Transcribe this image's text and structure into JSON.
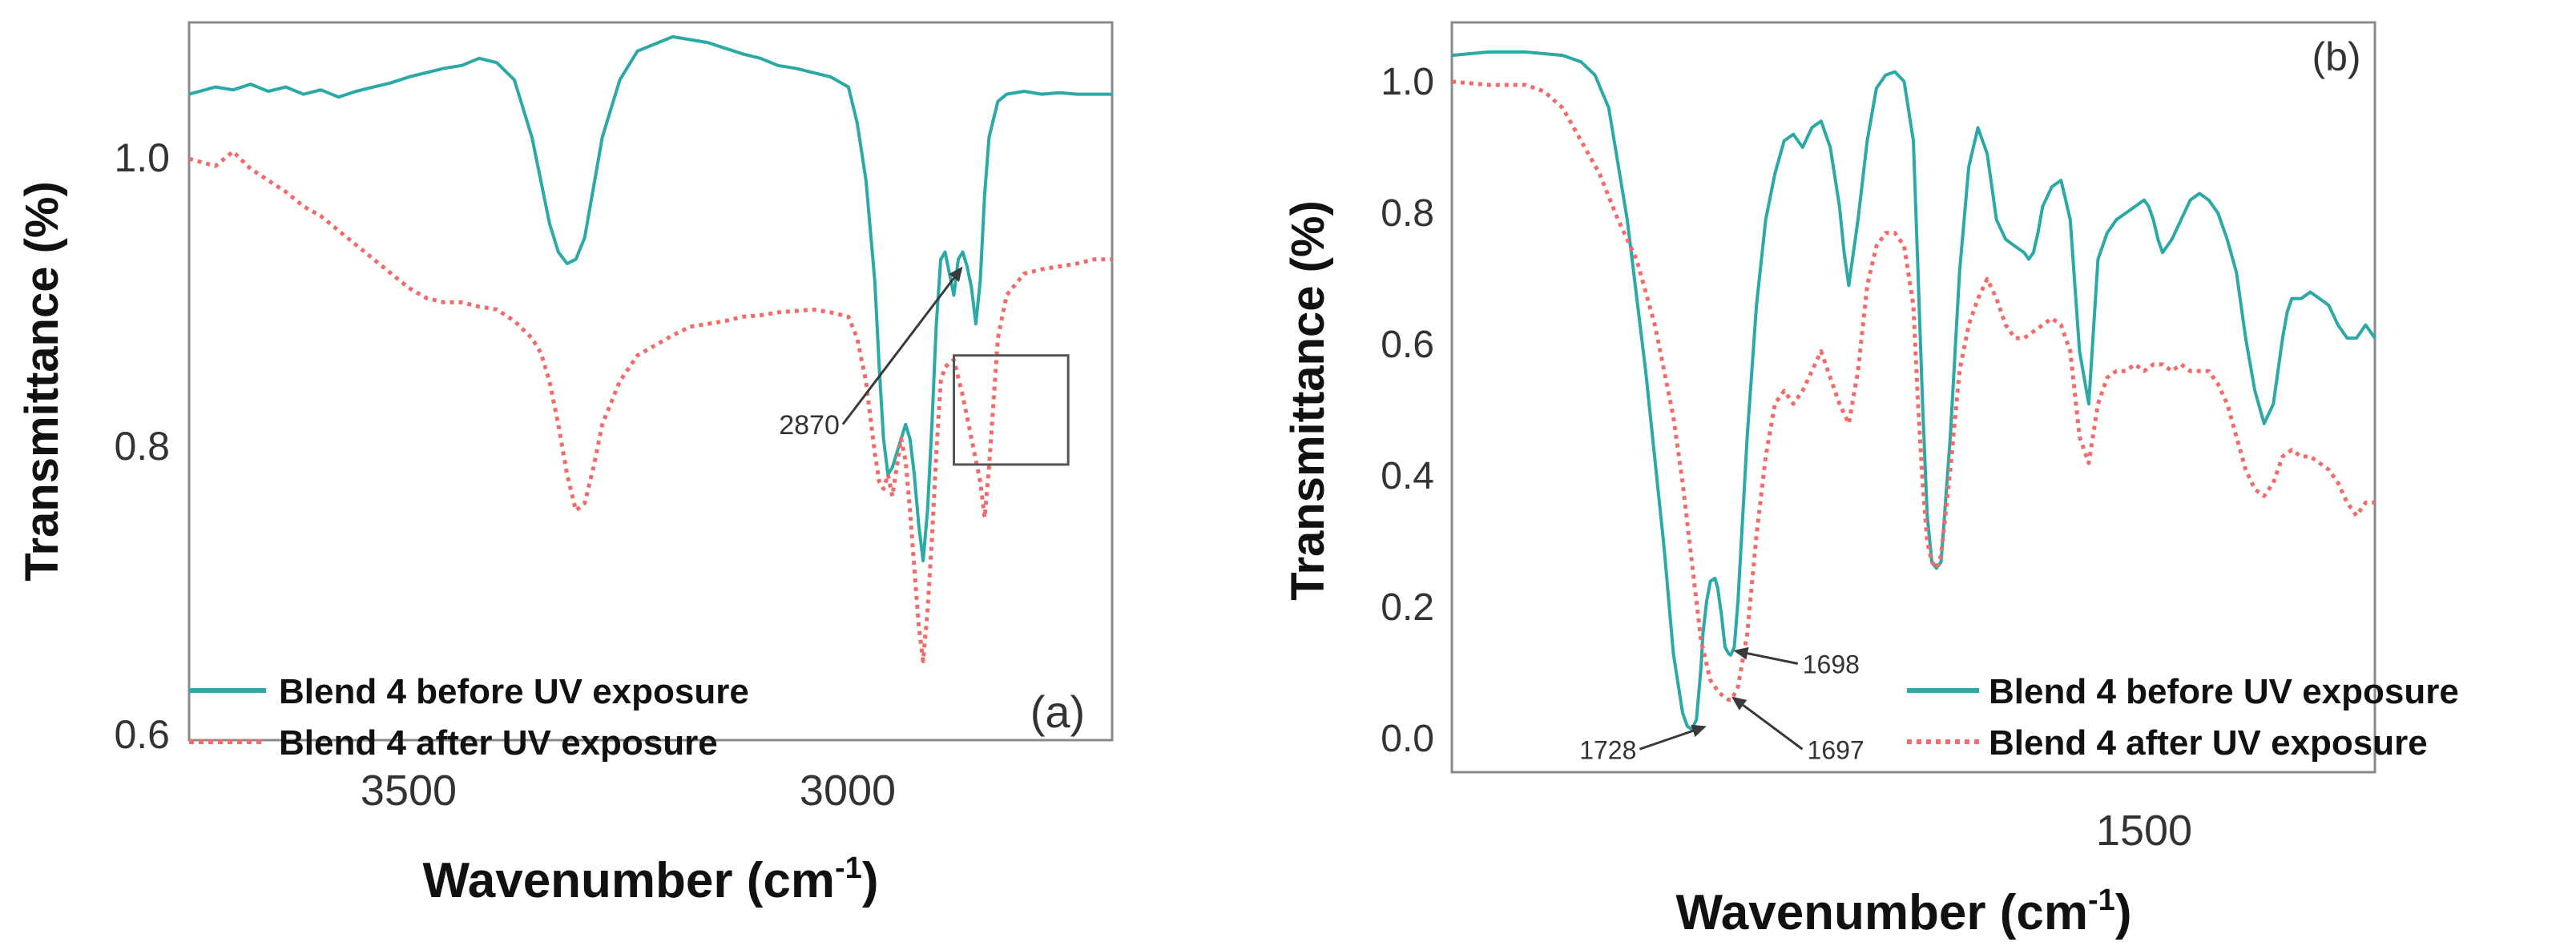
{
  "colors": {
    "before": "#2aa9a6",
    "after": "#f26b6b",
    "frame": "#8a8a8a",
    "arrow": "#3a3a3a"
  },
  "chart_data": [
    {
      "id": "a",
      "type": "line",
      "panel_label": "(a)",
      "xlabel": "Wavenumber (cm",
      "xlabel_sup": "-1",
      "xlabel_close": ")",
      "ylabel": "Transmittance (%)",
      "xlim": [
        3750,
        2700
      ],
      "ylim": [
        0.58,
        1.08
      ],
      "xticks": [
        3500,
        3000
      ],
      "xtick_labels": [
        "3500",
        "3000"
      ],
      "yticks": [
        1.0,
        0.8,
        0.6
      ],
      "ytick_labels": [
        "1.0",
        "0.8",
        "0.6"
      ],
      "legend": [
        "Blend 4 before UV exposure",
        "Blend 4 after UV exposure"
      ],
      "annotations": [
        {
          "text": "2870",
          "tip": [
            2870,
            0.91
          ],
          "label_at": [
            3010,
            0.8
          ]
        }
      ],
      "box": {
        "x": [
          2880,
          2750
        ],
        "y": [
          0.848,
          0.772
        ]
      },
      "series": [
        {
          "name": "Blend 4 before UV exposure",
          "style": "solid",
          "x": [
            3750,
            3720,
            3700,
            3680,
            3660,
            3640,
            3620,
            3600,
            3580,
            3560,
            3540,
            3520,
            3500,
            3480,
            3460,
            3440,
            3420,
            3400,
            3380,
            3360,
            3350,
            3340,
            3330,
            3320,
            3310,
            3300,
            3290,
            3280,
            3260,
            3240,
            3220,
            3200,
            3180,
            3160,
            3140,
            3120,
            3100,
            3080,
            3060,
            3040,
            3020,
            3000,
            2990,
            2980,
            2970,
            2965,
            2960,
            2955,
            2950,
            2945,
            2940,
            2935,
            2930,
            2925,
            2920,
            2915,
            2910,
            2905,
            2900,
            2895,
            2890,
            2885,
            2880,
            2875,
            2870,
            2865,
            2860,
            2855,
            2850,
            2845,
            2840,
            2830,
            2820,
            2800,
            2780,
            2760,
            2740,
            2720,
            2700
          ],
          "y": [
            1.03,
            1.035,
            1.033,
            1.037,
            1.032,
            1.035,
            1.03,
            1.033,
            1.028,
            1.032,
            1.035,
            1.038,
            1.042,
            1.045,
            1.048,
            1.05,
            1.055,
            1.052,
            1.04,
            1.0,
            0.97,
            0.94,
            0.92,
            0.912,
            0.915,
            0.93,
            0.965,
            1.0,
            1.04,
            1.06,
            1.065,
            1.07,
            1.068,
            1.066,
            1.062,
            1.058,
            1.055,
            1.05,
            1.048,
            1.045,
            1.042,
            1.035,
            1.01,
            0.97,
            0.9,
            0.84,
            0.79,
            0.765,
            0.77,
            0.78,
            0.79,
            0.8,
            0.79,
            0.765,
            0.73,
            0.705,
            0.74,
            0.8,
            0.87,
            0.915,
            0.92,
            0.905,
            0.89,
            0.915,
            0.92,
            0.91,
            0.895,
            0.87,
            0.9,
            0.96,
            1.0,
            1.025,
            1.03,
            1.032,
            1.03,
            1.031,
            1.03,
            1.03,
            1.03
          ]
        },
        {
          "name": "Blend 4 after UV exposure",
          "style": "dotted",
          "x": [
            3750,
            3720,
            3700,
            3680,
            3660,
            3640,
            3620,
            3600,
            3580,
            3560,
            3540,
            3520,
            3500,
            3480,
            3460,
            3440,
            3420,
            3400,
            3380,
            3360,
            3350,
            3340,
            3330,
            3320,
            3310,
            3300,
            3290,
            3280,
            3260,
            3240,
            3220,
            3200,
            3180,
            3160,
            3140,
            3120,
            3100,
            3080,
            3060,
            3040,
            3020,
            3000,
            2990,
            2980,
            2970,
            2965,
            2960,
            2955,
            2950,
            2945,
            2940,
            2935,
            2930,
            2925,
            2920,
            2915,
            2910,
            2905,
            2900,
            2895,
            2890,
            2880,
            2870,
            2860,
            2850,
            2845,
            2840,
            2830,
            2820,
            2800,
            2780,
            2760,
            2740,
            2720,
            2700
          ],
          "y": [
            0.985,
            0.98,
            0.99,
            0.978,
            0.97,
            0.962,
            0.952,
            0.945,
            0.935,
            0.925,
            0.915,
            0.905,
            0.895,
            0.888,
            0.885,
            0.885,
            0.882,
            0.88,
            0.872,
            0.86,
            0.85,
            0.83,
            0.8,
            0.765,
            0.74,
            0.745,
            0.77,
            0.8,
            0.83,
            0.848,
            0.855,
            0.862,
            0.868,
            0.87,
            0.872,
            0.875,
            0.876,
            0.878,
            0.879,
            0.88,
            0.878,
            0.875,
            0.86,
            0.83,
            0.78,
            0.76,
            0.755,
            0.765,
            0.75,
            0.77,
            0.79,
            0.775,
            0.74,
            0.7,
            0.66,
            0.635,
            0.67,
            0.72,
            0.78,
            0.83,
            0.84,
            0.845,
            0.82,
            0.79,
            0.76,
            0.735,
            0.77,
            0.86,
            0.89,
            0.905,
            0.908,
            0.91,
            0.912,
            0.915,
            0.915
          ]
        }
      ]
    },
    {
      "id": "b",
      "type": "line",
      "panel_label": "(b)",
      "xlabel": "Wavenumber (cm",
      "xlabel_sup": "-1",
      "xlabel_close": ")",
      "ylabel": "Transmittance (%)",
      "xlim": [
        2000,
        1000
      ],
      "ylim": [
        -0.06,
        1.08
      ],
      "xticks": [
        1500
      ],
      "xtick_labels": [
        "1500"
      ],
      "yticks": [
        1.0,
        0.8,
        0.6,
        0.4,
        0.2,
        0.0
      ],
      "ytick_labels": [
        "1.0",
        "0.8",
        "0.6",
        "0.4",
        "0.2",
        "0.0"
      ],
      "legend": [
        "Blend 4 before UV exposure",
        "Blend 4 after UV exposure"
      ],
      "annotations": [
        {
          "text": "1698",
          "tip": [
            1695,
            0.125
          ],
          "label_at": [
            1620,
            0.105
          ]
        },
        {
          "text": "1728",
          "tip": [
            1724,
            0.01
          ],
          "label_at": [
            1800,
            -0.025
          ]
        },
        {
          "text": "1697",
          "tip": [
            1697,
            0.055
          ],
          "label_at": [
            1615,
            -0.025
          ]
        }
      ],
      "series": [
        {
          "name": "Blend 4 before UV exposure",
          "style": "solid",
          "x": [
            2000,
            1960,
            1920,
            1880,
            1860,
            1845,
            1830,
            1810,
            1790,
            1770,
            1760,
            1750,
            1745,
            1740,
            1735,
            1730,
            1728,
            1724,
            1720,
            1715,
            1712,
            1708,
            1704,
            1700,
            1698,
            1694,
            1690,
            1680,
            1670,
            1660,
            1650,
            1640,
            1630,
            1620,
            1610,
            1600,
            1590,
            1580,
            1575,
            1570,
            1560,
            1550,
            1540,
            1530,
            1520,
            1510,
            1500,
            1495,
            1490,
            1485,
            1480,
            1475,
            1470,
            1460,
            1450,
            1440,
            1430,
            1420,
            1410,
            1400,
            1390,
            1380,
            1375,
            1370,
            1365,
            1360,
            1350,
            1340,
            1330,
            1320,
            1310,
            1300,
            1290,
            1280,
            1270,
            1260,
            1250,
            1245,
            1240,
            1235,
            1230,
            1220,
            1210,
            1200,
            1190,
            1180,
            1170,
            1160,
            1150,
            1140,
            1130,
            1120,
            1110,
            1100,
            1095,
            1090,
            1080,
            1070,
            1060,
            1050,
            1040,
            1030,
            1020,
            1010,
            1000
          ],
          "y": [
            1.03,
            1.035,
            1.035,
            1.03,
            1.02,
            1.0,
            0.95,
            0.78,
            0.55,
            0.28,
            0.12,
            0.03,
            0.01,
            0.005,
            0.02,
            0.1,
            0.15,
            0.2,
            0.23,
            0.235,
            0.22,
            0.18,
            0.13,
            0.12,
            0.118,
            0.13,
            0.2,
            0.45,
            0.65,
            0.78,
            0.85,
            0.9,
            0.91,
            0.89,
            0.92,
            0.93,
            0.89,
            0.8,
            0.73,
            0.68,
            0.78,
            0.9,
            0.98,
            1.0,
            1.005,
            0.99,
            0.9,
            0.7,
            0.5,
            0.33,
            0.26,
            0.25,
            0.26,
            0.45,
            0.7,
            0.86,
            0.92,
            0.88,
            0.78,
            0.75,
            0.74,
            0.73,
            0.72,
            0.73,
            0.76,
            0.8,
            0.83,
            0.84,
            0.78,
            0.58,
            0.5,
            0.72,
            0.76,
            0.78,
            0.79,
            0.8,
            0.81,
            0.8,
            0.78,
            0.75,
            0.73,
            0.75,
            0.78,
            0.81,
            0.82,
            0.81,
            0.79,
            0.75,
            0.7,
            0.6,
            0.52,
            0.47,
            0.5,
            0.6,
            0.64,
            0.66,
            0.66,
            0.67,
            0.66,
            0.65,
            0.62,
            0.6,
            0.6,
            0.62,
            0.6
          ]
        },
        {
          "name": "Blend 4 after UV exposure",
          "style": "dotted",
          "x": [
            2000,
            1960,
            1920,
            1900,
            1880,
            1860,
            1840,
            1820,
            1800,
            1780,
            1770,
            1760,
            1750,
            1740,
            1730,
            1720,
            1710,
            1700,
            1697,
            1690,
            1680,
            1670,
            1660,
            1650,
            1640,
            1630,
            1620,
            1610,
            1600,
            1590,
            1580,
            1570,
            1560,
            1550,
            1540,
            1530,
            1520,
            1510,
            1500,
            1495,
            1490,
            1485,
            1480,
            1475,
            1470,
            1460,
            1450,
            1440,
            1430,
            1420,
            1410,
            1400,
            1390,
            1380,
            1370,
            1360,
            1350,
            1340,
            1330,
            1320,
            1310,
            1300,
            1290,
            1280,
            1270,
            1260,
            1250,
            1240,
            1230,
            1220,
            1210,
            1200,
            1190,
            1180,
            1170,
            1160,
            1150,
            1140,
            1130,
            1120,
            1110,
            1100,
            1090,
            1080,
            1070,
            1060,
            1050,
            1040,
            1030,
            1020,
            1010,
            1000
          ],
          "y": [
            0.99,
            0.985,
            0.985,
            0.975,
            0.95,
            0.9,
            0.85,
            0.78,
            0.72,
            0.62,
            0.55,
            0.48,
            0.38,
            0.26,
            0.14,
            0.08,
            0.06,
            0.05,
            0.05,
            0.07,
            0.15,
            0.3,
            0.42,
            0.5,
            0.52,
            0.5,
            0.52,
            0.55,
            0.58,
            0.54,
            0.5,
            0.47,
            0.55,
            0.68,
            0.74,
            0.76,
            0.76,
            0.74,
            0.65,
            0.5,
            0.38,
            0.29,
            0.26,
            0.25,
            0.27,
            0.4,
            0.55,
            0.62,
            0.66,
            0.69,
            0.66,
            0.62,
            0.6,
            0.6,
            0.61,
            0.62,
            0.63,
            0.62,
            0.58,
            0.45,
            0.41,
            0.5,
            0.54,
            0.55,
            0.55,
            0.56,
            0.55,
            0.56,
            0.56,
            0.55,
            0.56,
            0.55,
            0.55,
            0.55,
            0.53,
            0.5,
            0.45,
            0.4,
            0.37,
            0.36,
            0.38,
            0.42,
            0.43,
            0.42,
            0.42,
            0.41,
            0.4,
            0.38,
            0.35,
            0.33,
            0.35,
            0.35
          ]
        }
      ]
    }
  ]
}
